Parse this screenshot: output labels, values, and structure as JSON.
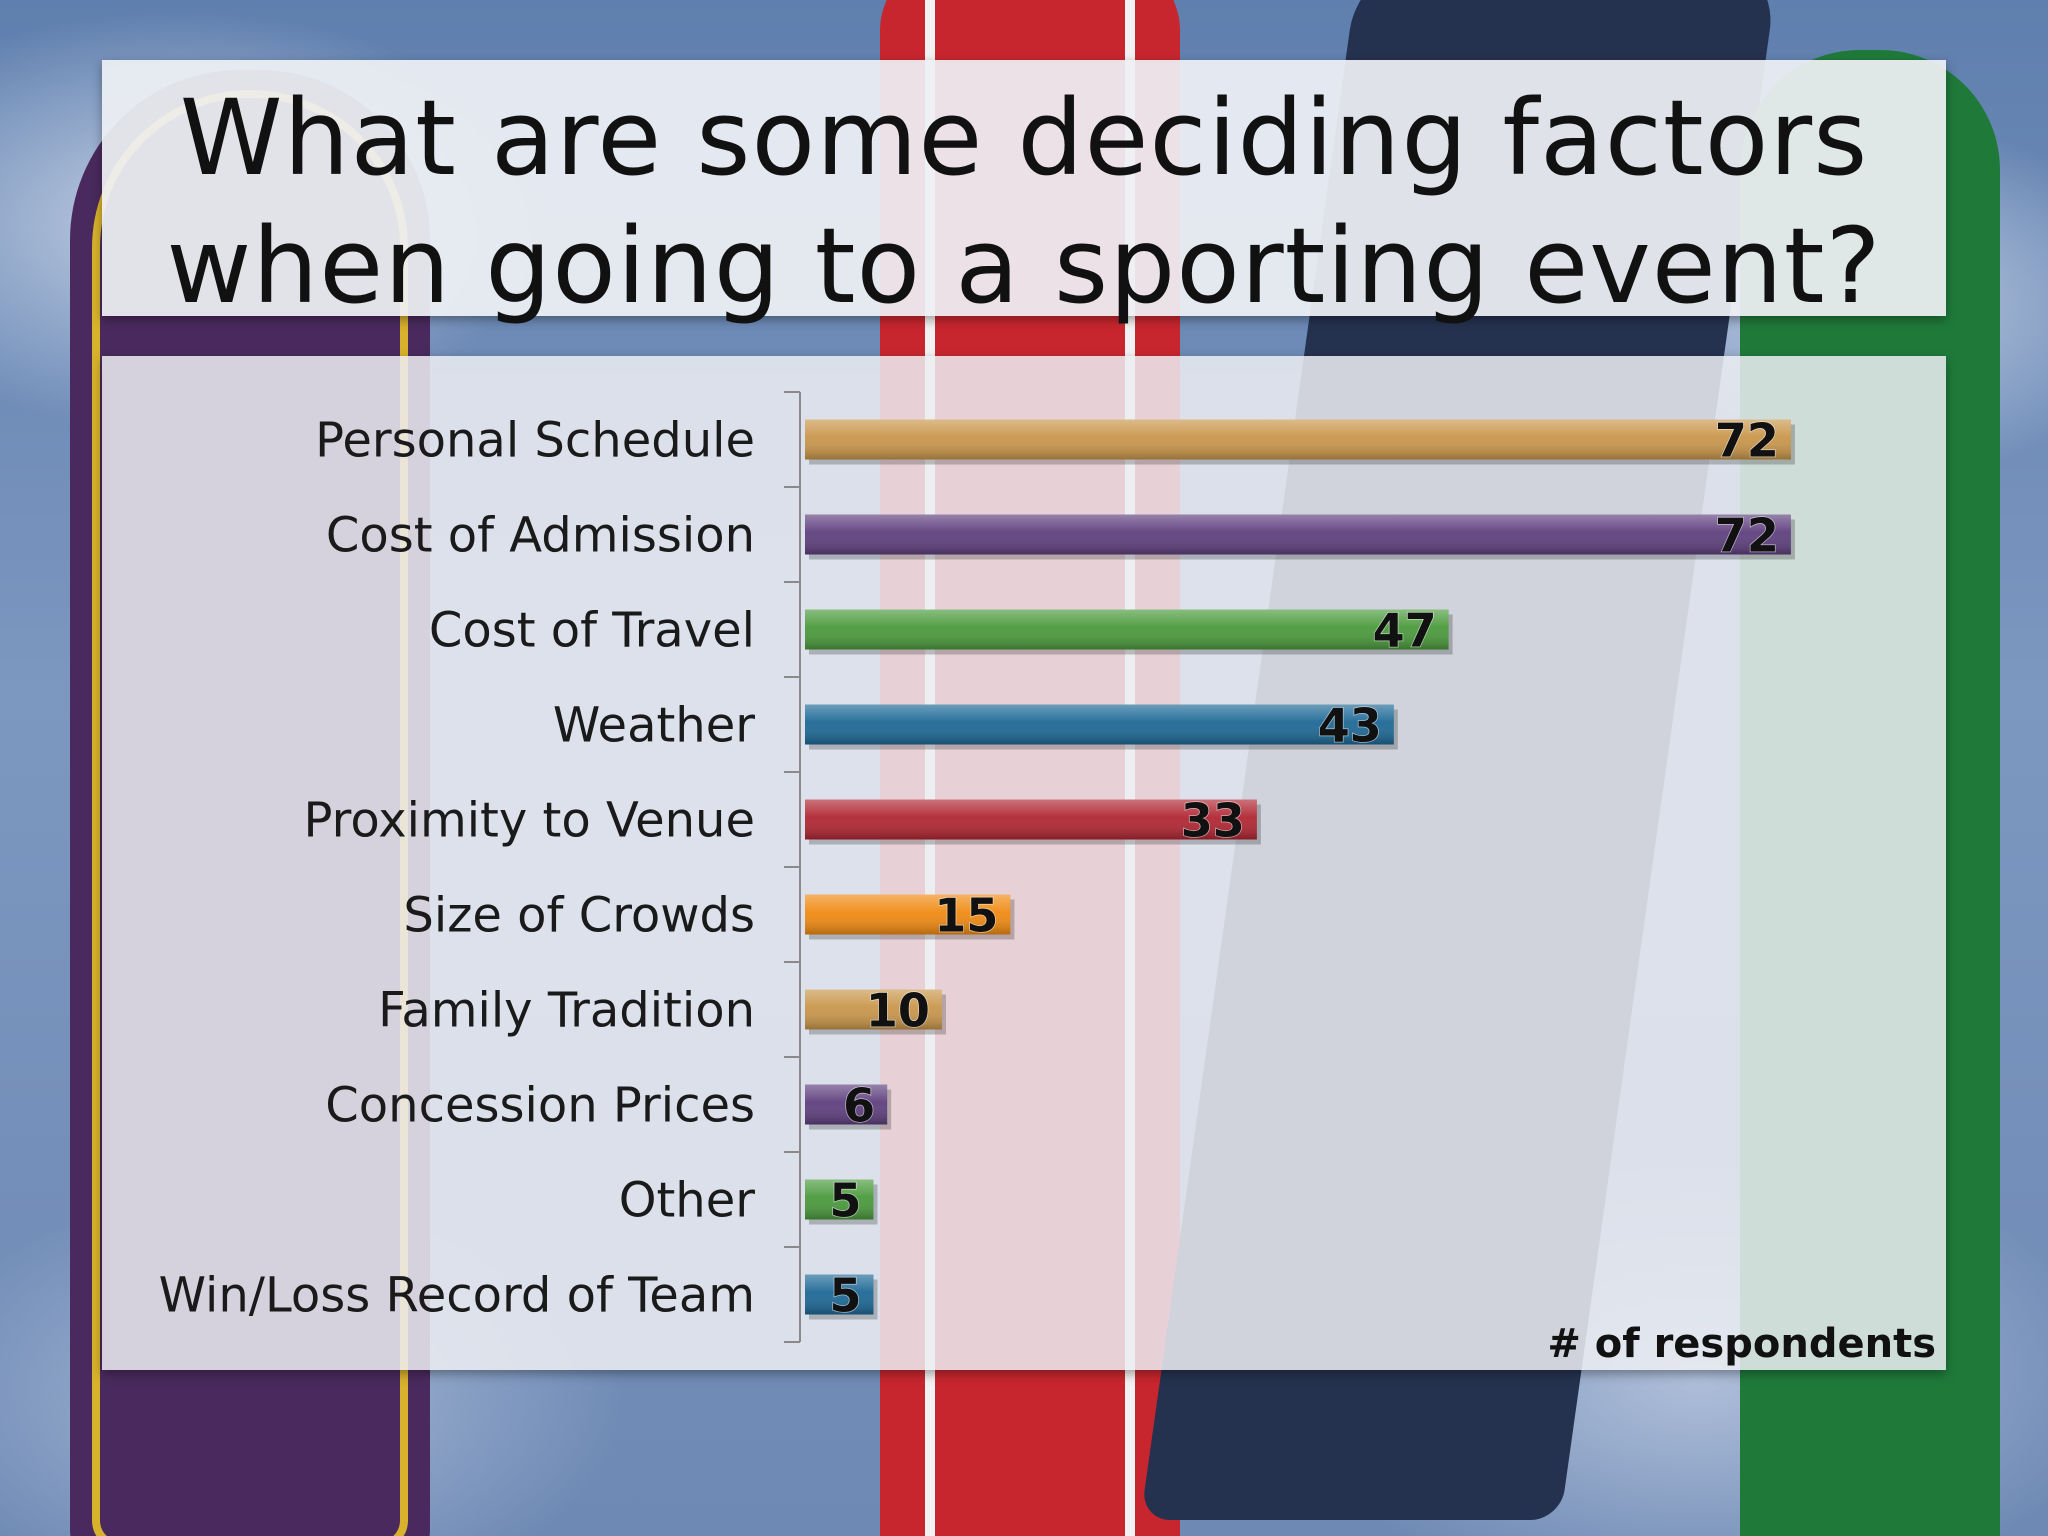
{
  "slide": {
    "title": "What are some deciding factors when going to a sporting event?"
  },
  "chart_data": {
    "type": "bar",
    "orientation": "horizontal",
    "categories": [
      "Personal Schedule",
      "Cost of Admission",
      "Cost of Travel",
      "Weather",
      "Proximity to Venue",
      "Size of Crowds",
      "Family Tradition",
      "Concession Prices",
      "Other",
      "Win/Loss Record of Team"
    ],
    "values": [
      72,
      72,
      47,
      43,
      33,
      15,
      10,
      6,
      5,
      5
    ],
    "colors": [
      "#c9964a",
      "#5e3f7e",
      "#4a9a3c",
      "#1d6896",
      "#b02632",
      "#f08a12",
      "#c9964a",
      "#5e3f7e",
      "#4a9a3c",
      "#1d6896"
    ],
    "xlabel": "# of respondents",
    "ylabel": "",
    "xlim": [
      0,
      75
    ],
    "grid": false,
    "legend": "none",
    "data_labels": true
  }
}
